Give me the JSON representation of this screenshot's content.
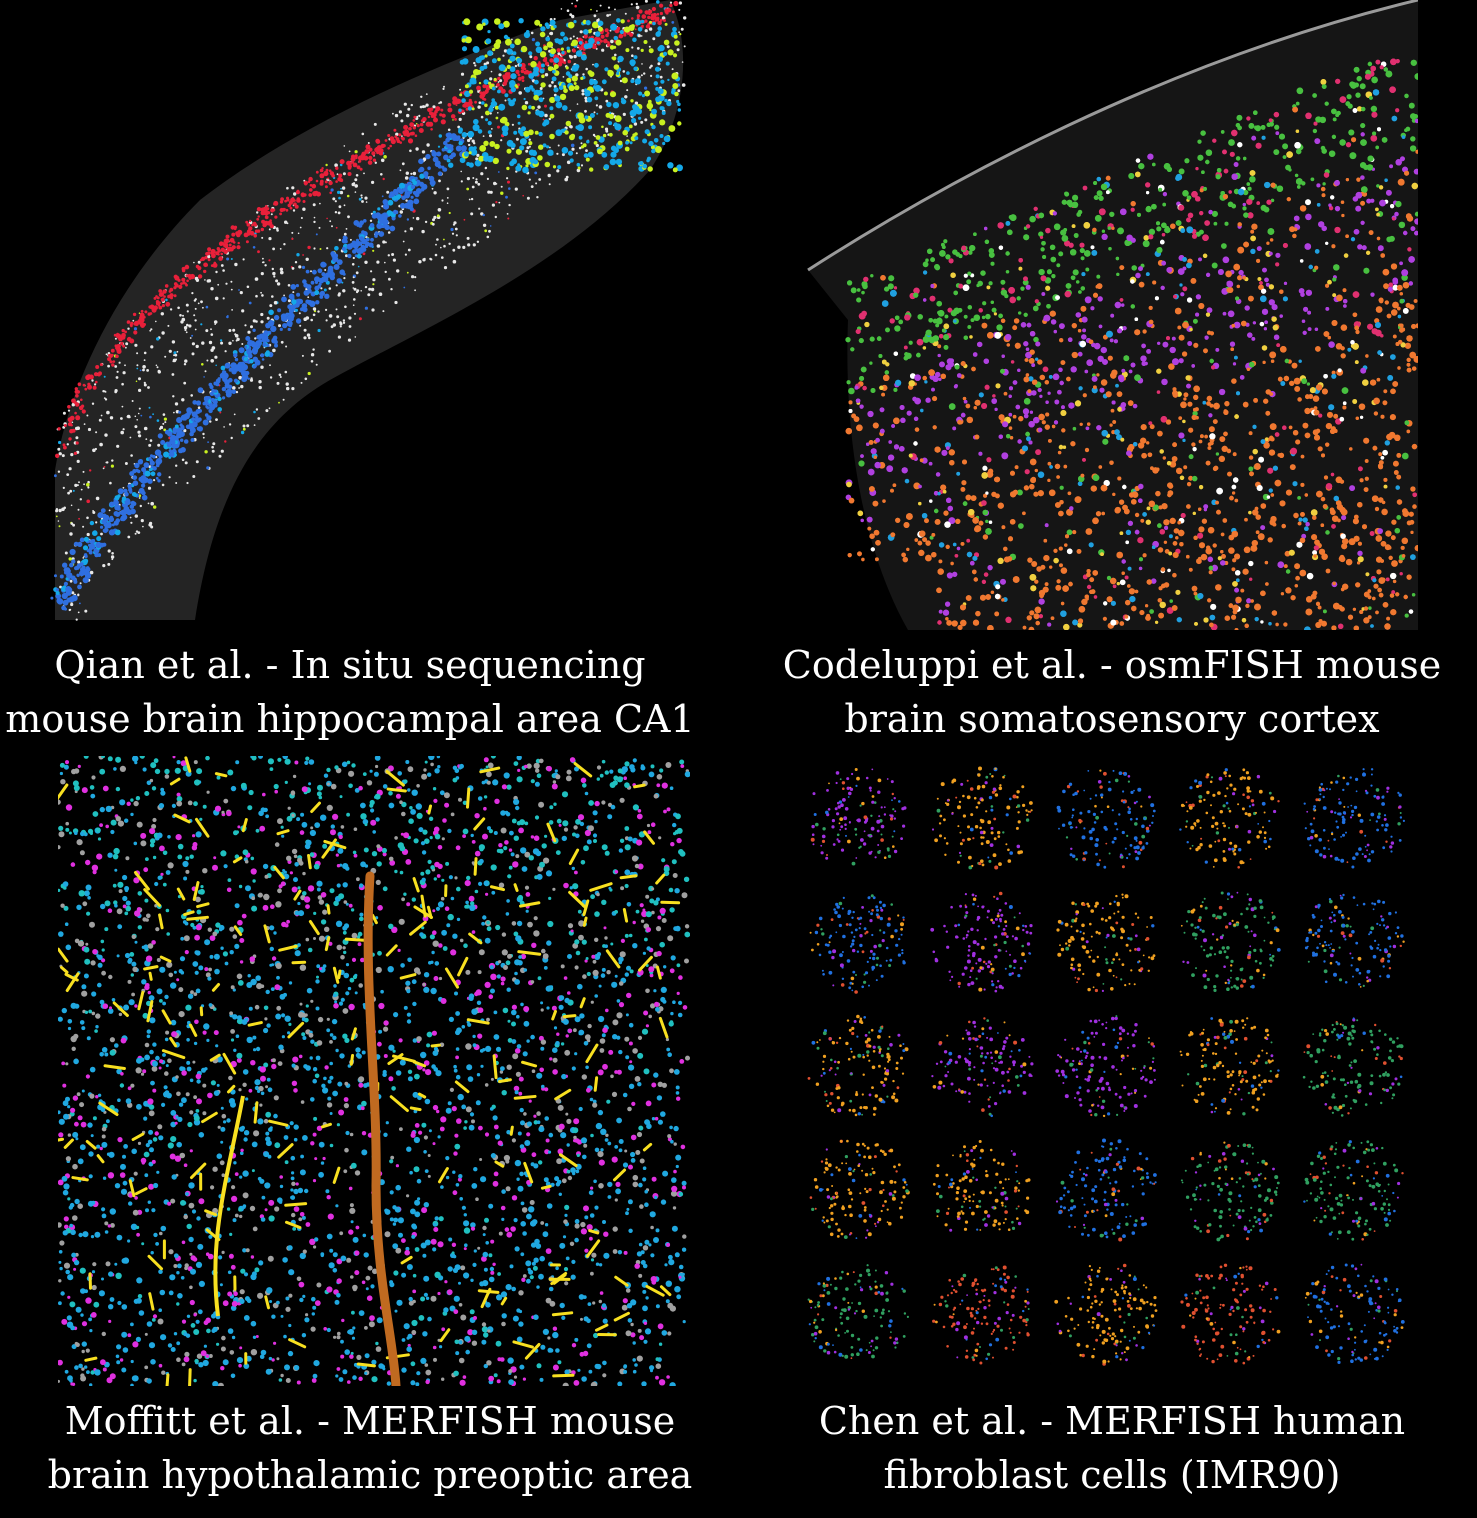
{
  "panels": [
    {
      "id": "qian",
      "caption_line1": "Qian et al. - In situ sequencing",
      "caption_line2": "mouse brain hippocampal area CA1",
      "palette": [
        "#e8203a",
        "#2f6fe0",
        "#14a8e8",
        "#c8f020",
        "#e8e8e8"
      ]
    },
    {
      "id": "codeluppi",
      "caption_line1": "Codeluppi et al. - osmFISH mouse",
      "caption_line2": "brain somatosensory cortex",
      "palette": [
        "#48c040",
        "#f07830",
        "#b040e0",
        "#e03070",
        "#20a0e0",
        "#f0d040",
        "#ffffff"
      ]
    },
    {
      "id": "moffitt",
      "caption_line1": "Moffitt et al. - MERFISH mouse",
      "caption_line2": "brain hypothalamic preoptic area",
      "palette": [
        "#20a8e0",
        "#e030e0",
        "#f8e020",
        "#20c0c0",
        "#c06a20",
        "#a0a0a0"
      ]
    },
    {
      "id": "chen",
      "caption_line1": "Chen et al. - MERFISH human",
      "caption_line2": "fibroblast cells (IMR90)",
      "palette": [
        "#f0a020",
        "#a030e0",
        "#e05030",
        "#30a060",
        "#2070e0"
      ]
    }
  ]
}
